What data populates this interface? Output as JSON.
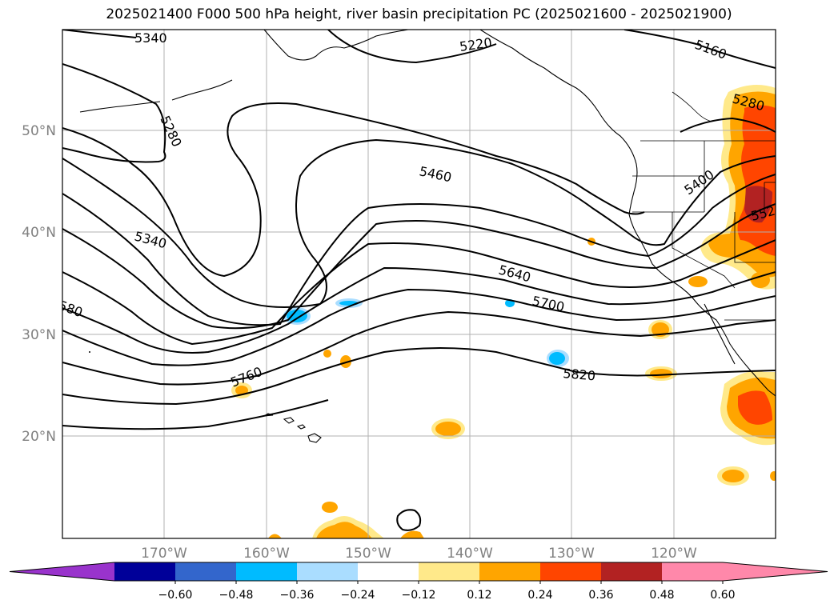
{
  "title": "2025021400 F000 500 hPa height, river basin precipitation PC (2025021600 - 2025021900)",
  "lat_labels": [
    "50°N",
    "40°N",
    "30°N",
    "20°N"
  ],
  "lon_labels": [
    "170°W",
    "160°W",
    "150°W",
    "140°W",
    "130°W",
    "120°W"
  ],
  "contour_labels": [
    "5340",
    "5220",
    "5160",
    "5280",
    "5280",
    "5460",
    "5400",
    "552",
    "5340",
    "5640",
    "5700",
    "580",
    "5760",
    "5820"
  ],
  "colorbar": {
    "ticks": [
      "−0.60",
      "−0.48",
      "−0.36",
      "−0.24",
      "−0.12",
      "0.12",
      "0.24",
      "0.36",
      "0.48",
      "0.60"
    ],
    "colors": [
      "#9933cc",
      "#000099",
      "#3366cc",
      "#00bbff",
      "#aaddff",
      "#ffffff",
      "#ffe98a",
      "#ffa500",
      "#ff4500",
      "#b22222",
      "#ff88aa",
      "#ff88aa"
    ]
  }
}
